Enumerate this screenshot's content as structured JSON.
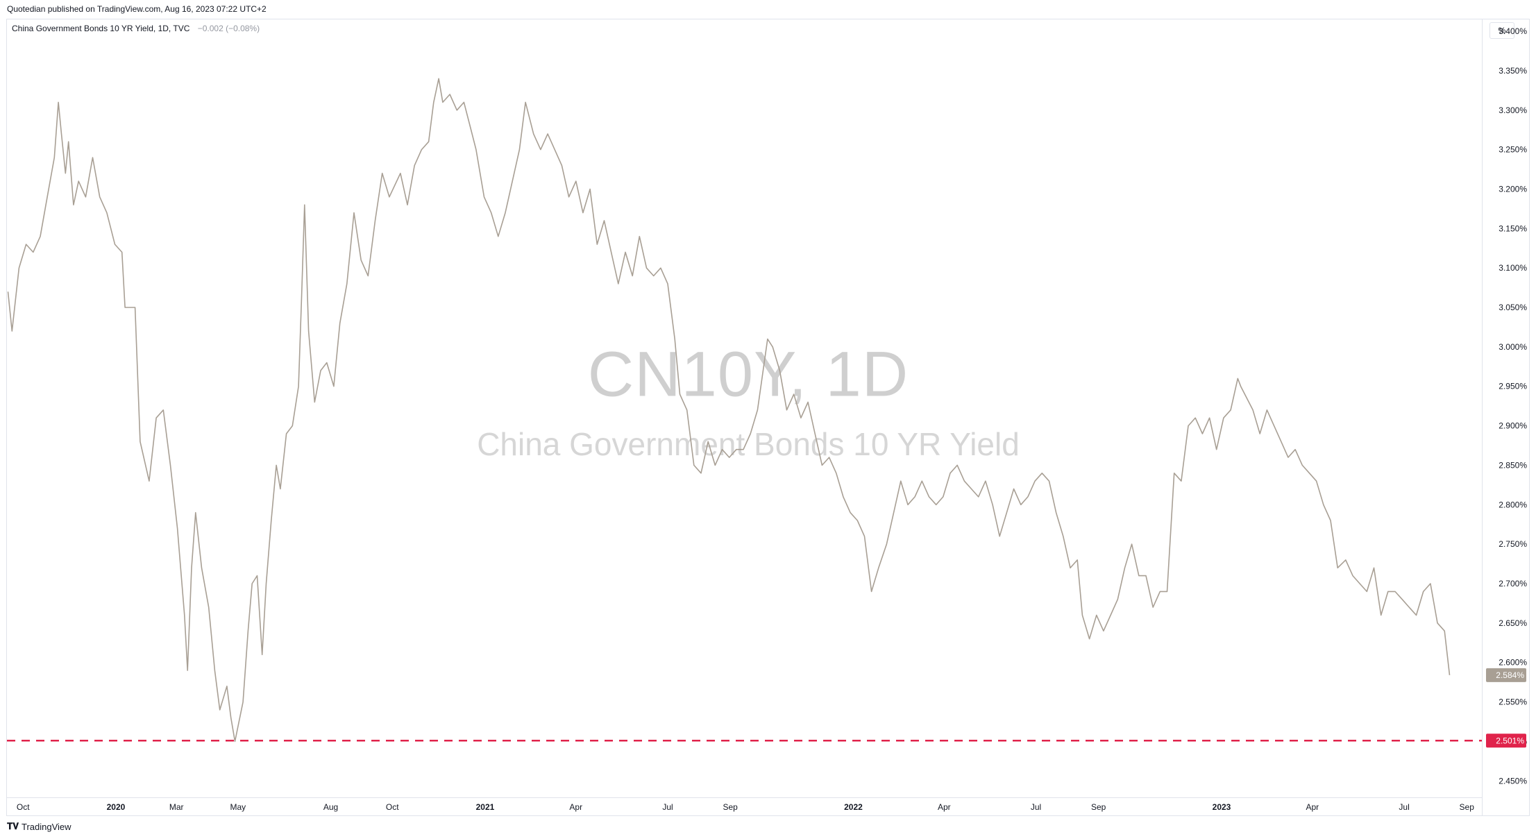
{
  "header": {
    "published": "Quotedian published on TradingView.com, Aug 16, 2023 07:22 UTC+2"
  },
  "legend": {
    "symbol": "China Government Bonds 10 YR Yield, 1D, TVC",
    "change": "−0.002 (−0.08%)"
  },
  "watermark": {
    "ticker": "CN10Y, 1D",
    "name": "China Government Bonds 10 YR Yield"
  },
  "axis": {
    "unit_label": "%"
  },
  "footer": {
    "brand": "TradingView"
  },
  "colors": {
    "line": "#a89f94",
    "support_line": "#e0234b",
    "last_price_badge": "#a89f94"
  },
  "chart_data": {
    "type": "line",
    "title": "",
    "xlabel": "",
    "ylabel": "",
    "ylim": [
      2.43,
      3.415
    ],
    "xlim_dates": [
      "2019-09-15",
      "2023-09-16"
    ],
    "y_ticks": [
      {
        "value": 2.45,
        "label": "2.450%"
      },
      {
        "value": 2.5,
        "label": "2.500%"
      },
      {
        "value": 2.55,
        "label": "2.550%"
      },
      {
        "value": 2.6,
        "label": "2.600%"
      },
      {
        "value": 2.65,
        "label": "2.650%"
      },
      {
        "value": 2.7,
        "label": "2.700%"
      },
      {
        "value": 2.75,
        "label": "2.750%"
      },
      {
        "value": 2.8,
        "label": "2.800%"
      },
      {
        "value": 2.85,
        "label": "2.850%"
      },
      {
        "value": 2.9,
        "label": "2.900%"
      },
      {
        "value": 2.95,
        "label": "2.950%"
      },
      {
        "value": 3.0,
        "label": "3.000%"
      },
      {
        "value": 3.05,
        "label": "3.050%"
      },
      {
        "value": 3.1,
        "label": "3.100%"
      },
      {
        "value": 3.15,
        "label": "3.150%"
      },
      {
        "value": 3.2,
        "label": "3.200%"
      },
      {
        "value": 3.25,
        "label": "3.250%"
      },
      {
        "value": 3.3,
        "label": "3.300%"
      },
      {
        "value": 3.35,
        "label": "3.350%"
      },
      {
        "value": 3.4,
        "label": "3.400%"
      }
    ],
    "x_ticks": [
      {
        "date": "2019-10-01",
        "label": "Oct",
        "bold": false
      },
      {
        "date": "2020-01-01",
        "label": "2020",
        "bold": true
      },
      {
        "date": "2020-03-01",
        "label": "Mar",
        "bold": false
      },
      {
        "date": "2020-05-01",
        "label": "May",
        "bold": false
      },
      {
        "date": "2020-08-01",
        "label": "Aug",
        "bold": false
      },
      {
        "date": "2020-10-01",
        "label": "Oct",
        "bold": false
      },
      {
        "date": "2021-01-01",
        "label": "2021",
        "bold": true
      },
      {
        "date": "2021-04-01",
        "label": "Apr",
        "bold": false
      },
      {
        "date": "2021-07-01",
        "label": "Jul",
        "bold": false
      },
      {
        "date": "2021-09-01",
        "label": "Sep",
        "bold": false
      },
      {
        "date": "2022-01-01",
        "label": "2022",
        "bold": true
      },
      {
        "date": "2022-04-01",
        "label": "Apr",
        "bold": false
      },
      {
        "date": "2022-07-01",
        "label": "Jul",
        "bold": false
      },
      {
        "date": "2022-09-01",
        "label": "Sep",
        "bold": false
      },
      {
        "date": "2023-01-01",
        "label": "2023",
        "bold": true
      },
      {
        "date": "2023-04-01",
        "label": "Apr",
        "bold": false
      },
      {
        "date": "2023-07-01",
        "label": "Jul",
        "bold": false
      },
      {
        "date": "2023-09-01",
        "label": "Sep",
        "bold": false
      }
    ],
    "series": [
      {
        "points": [
          [
            "2019-09-16",
            3.07
          ],
          [
            "2019-09-20",
            3.02
          ],
          [
            "2019-09-27",
            3.1
          ],
          [
            "2019-10-04",
            3.13
          ],
          [
            "2019-10-11",
            3.12
          ],
          [
            "2019-10-18",
            3.14
          ],
          [
            "2019-10-25",
            3.19
          ],
          [
            "2019-11-01",
            3.24
          ],
          [
            "2019-11-05",
            3.31
          ],
          [
            "2019-11-08",
            3.27
          ],
          [
            "2019-11-12",
            3.22
          ],
          [
            "2019-11-15",
            3.26
          ],
          [
            "2019-11-20",
            3.18
          ],
          [
            "2019-11-25",
            3.21
          ],
          [
            "2019-12-02",
            3.19
          ],
          [
            "2019-12-09",
            3.24
          ],
          [
            "2019-12-16",
            3.19
          ],
          [
            "2019-12-23",
            3.17
          ],
          [
            "2019-12-31",
            3.13
          ],
          [
            "2020-01-07",
            3.12
          ],
          [
            "2020-01-10",
            3.05
          ],
          [
            "2020-01-20",
            3.05
          ],
          [
            "2020-01-25",
            2.88
          ],
          [
            "2020-02-03",
            2.83
          ],
          [
            "2020-02-10",
            2.91
          ],
          [
            "2020-02-17",
            2.92
          ],
          [
            "2020-02-24",
            2.85
          ],
          [
            "2020-03-02",
            2.77
          ],
          [
            "2020-03-09",
            2.66
          ],
          [
            "2020-03-12",
            2.59
          ],
          [
            "2020-03-16",
            2.72
          ],
          [
            "2020-03-20",
            2.79
          ],
          [
            "2020-03-26",
            2.72
          ],
          [
            "2020-04-02",
            2.67
          ],
          [
            "2020-04-08",
            2.59
          ],
          [
            "2020-04-13",
            2.54
          ],
          [
            "2020-04-20",
            2.57
          ],
          [
            "2020-04-24",
            2.53
          ],
          [
            "2020-04-28",
            2.5
          ],
          [
            "2020-05-06",
            2.55
          ],
          [
            "2020-05-11",
            2.64
          ],
          [
            "2020-05-15",
            2.7
          ],
          [
            "2020-05-20",
            2.71
          ],
          [
            "2020-05-25",
            2.61
          ],
          [
            "2020-05-29",
            2.7
          ],
          [
            "2020-06-03",
            2.78
          ],
          [
            "2020-06-08",
            2.85
          ],
          [
            "2020-06-12",
            2.82
          ],
          [
            "2020-06-18",
            2.89
          ],
          [
            "2020-06-24",
            2.9
          ],
          [
            "2020-06-30",
            2.95
          ],
          [
            "2020-07-03",
            3.06
          ],
          [
            "2020-07-06",
            3.18
          ],
          [
            "2020-07-10",
            3.02
          ],
          [
            "2020-07-16",
            2.93
          ],
          [
            "2020-07-22",
            2.97
          ],
          [
            "2020-07-28",
            2.98
          ],
          [
            "2020-08-04",
            2.95
          ],
          [
            "2020-08-10",
            3.03
          ],
          [
            "2020-08-17",
            3.08
          ],
          [
            "2020-08-24",
            3.17
          ],
          [
            "2020-08-31",
            3.11
          ],
          [
            "2020-09-07",
            3.09
          ],
          [
            "2020-09-14",
            3.16
          ],
          [
            "2020-09-21",
            3.22
          ],
          [
            "2020-09-28",
            3.19
          ],
          [
            "2020-10-09",
            3.22
          ],
          [
            "2020-10-16",
            3.18
          ],
          [
            "2020-10-23",
            3.23
          ],
          [
            "2020-10-30",
            3.25
          ],
          [
            "2020-11-06",
            3.26
          ],
          [
            "2020-11-11",
            3.31
          ],
          [
            "2020-11-16",
            3.34
          ],
          [
            "2020-11-20",
            3.31
          ],
          [
            "2020-11-27",
            3.32
          ],
          [
            "2020-12-04",
            3.3
          ],
          [
            "2020-12-11",
            3.31
          ],
          [
            "2020-12-17",
            3.28
          ],
          [
            "2020-12-23",
            3.25
          ],
          [
            "2020-12-31",
            3.19
          ],
          [
            "2021-01-07",
            3.17
          ],
          [
            "2021-01-14",
            3.14
          ],
          [
            "2021-01-21",
            3.17
          ],
          [
            "2021-01-28",
            3.21
          ],
          [
            "2021-02-04",
            3.25
          ],
          [
            "2021-02-10",
            3.31
          ],
          [
            "2021-02-18",
            3.27
          ],
          [
            "2021-02-25",
            3.25
          ],
          [
            "2021-03-04",
            3.27
          ],
          [
            "2021-03-11",
            3.25
          ],
          [
            "2021-03-18",
            3.23
          ],
          [
            "2021-03-25",
            3.19
          ],
          [
            "2021-04-01",
            3.21
          ],
          [
            "2021-04-08",
            3.17
          ],
          [
            "2021-04-15",
            3.2
          ],
          [
            "2021-04-22",
            3.13
          ],
          [
            "2021-04-29",
            3.16
          ],
          [
            "2021-05-06",
            3.12
          ],
          [
            "2021-05-13",
            3.08
          ],
          [
            "2021-05-20",
            3.12
          ],
          [
            "2021-05-27",
            3.09
          ],
          [
            "2021-06-03",
            3.14
          ],
          [
            "2021-06-10",
            3.1
          ],
          [
            "2021-06-17",
            3.09
          ],
          [
            "2021-06-24",
            3.1
          ],
          [
            "2021-07-01",
            3.08
          ],
          [
            "2021-07-08",
            3.01
          ],
          [
            "2021-07-13",
            2.94
          ],
          [
            "2021-07-20",
            2.92
          ],
          [
            "2021-07-27",
            2.85
          ],
          [
            "2021-08-03",
            2.84
          ],
          [
            "2021-08-10",
            2.88
          ],
          [
            "2021-08-17",
            2.85
          ],
          [
            "2021-08-24",
            2.87
          ],
          [
            "2021-08-31",
            2.86
          ],
          [
            "2021-09-07",
            2.87
          ],
          [
            "2021-09-14",
            2.87
          ],
          [
            "2021-09-21",
            2.89
          ],
          [
            "2021-09-28",
            2.92
          ],
          [
            "2021-10-08",
            3.01
          ],
          [
            "2021-10-13",
            3.0
          ],
          [
            "2021-10-20",
            2.97
          ],
          [
            "2021-10-27",
            2.92
          ],
          [
            "2021-11-03",
            2.94
          ],
          [
            "2021-11-10",
            2.91
          ],
          [
            "2021-11-17",
            2.93
          ],
          [
            "2021-11-24",
            2.89
          ],
          [
            "2021-12-01",
            2.85
          ],
          [
            "2021-12-08",
            2.86
          ],
          [
            "2021-12-15",
            2.84
          ],
          [
            "2021-12-22",
            2.81
          ],
          [
            "2021-12-29",
            2.79
          ],
          [
            "2022-01-05",
            2.78
          ],
          [
            "2022-01-12",
            2.76
          ],
          [
            "2022-01-19",
            2.69
          ],
          [
            "2022-01-26",
            2.72
          ],
          [
            "2022-02-03",
            2.75
          ],
          [
            "2022-02-10",
            2.79
          ],
          [
            "2022-02-17",
            2.83
          ],
          [
            "2022-02-24",
            2.8
          ],
          [
            "2022-03-03",
            2.81
          ],
          [
            "2022-03-10",
            2.83
          ],
          [
            "2022-03-17",
            2.81
          ],
          [
            "2022-03-24",
            2.8
          ],
          [
            "2022-03-31",
            2.81
          ],
          [
            "2022-04-07",
            2.84
          ],
          [
            "2022-04-14",
            2.85
          ],
          [
            "2022-04-21",
            2.83
          ],
          [
            "2022-04-28",
            2.82
          ],
          [
            "2022-05-05",
            2.81
          ],
          [
            "2022-05-12",
            2.83
          ],
          [
            "2022-05-19",
            2.8
          ],
          [
            "2022-05-26",
            2.76
          ],
          [
            "2022-06-02",
            2.79
          ],
          [
            "2022-06-09",
            2.82
          ],
          [
            "2022-06-16",
            2.8
          ],
          [
            "2022-06-23",
            2.81
          ],
          [
            "2022-06-30",
            2.83
          ],
          [
            "2022-07-07",
            2.84
          ],
          [
            "2022-07-14",
            2.83
          ],
          [
            "2022-07-21",
            2.79
          ],
          [
            "2022-07-28",
            2.76
          ],
          [
            "2022-08-04",
            2.72
          ],
          [
            "2022-08-11",
            2.73
          ],
          [
            "2022-08-16",
            2.66
          ],
          [
            "2022-08-23",
            2.63
          ],
          [
            "2022-08-30",
            2.66
          ],
          [
            "2022-09-06",
            2.64
          ],
          [
            "2022-09-13",
            2.66
          ],
          [
            "2022-09-20",
            2.68
          ],
          [
            "2022-09-27",
            2.72
          ],
          [
            "2022-10-04",
            2.75
          ],
          [
            "2022-10-11",
            2.71
          ],
          [
            "2022-10-18",
            2.71
          ],
          [
            "2022-10-25",
            2.67
          ],
          [
            "2022-11-01",
            2.69
          ],
          [
            "2022-11-08",
            2.69
          ],
          [
            "2022-11-15",
            2.84
          ],
          [
            "2022-11-22",
            2.83
          ],
          [
            "2022-11-29",
            2.9
          ],
          [
            "2022-12-06",
            2.91
          ],
          [
            "2022-12-13",
            2.89
          ],
          [
            "2022-12-20",
            2.91
          ],
          [
            "2022-12-27",
            2.87
          ],
          [
            "2023-01-03",
            2.91
          ],
          [
            "2023-01-10",
            2.92
          ],
          [
            "2023-01-17",
            2.96
          ],
          [
            "2023-01-20",
            2.95
          ],
          [
            "2023-02-01",
            2.92
          ],
          [
            "2023-02-08",
            2.89
          ],
          [
            "2023-02-15",
            2.92
          ],
          [
            "2023-02-22",
            2.9
          ],
          [
            "2023-03-01",
            2.88
          ],
          [
            "2023-03-08",
            2.86
          ],
          [
            "2023-03-15",
            2.87
          ],
          [
            "2023-03-22",
            2.85
          ],
          [
            "2023-03-29",
            2.84
          ],
          [
            "2023-04-05",
            2.83
          ],
          [
            "2023-04-12",
            2.8
          ],
          [
            "2023-04-19",
            2.78
          ],
          [
            "2023-04-26",
            2.72
          ],
          [
            "2023-05-04",
            2.73
          ],
          [
            "2023-05-11",
            2.71
          ],
          [
            "2023-05-18",
            2.7
          ],
          [
            "2023-05-25",
            2.69
          ],
          [
            "2023-06-01",
            2.72
          ],
          [
            "2023-06-08",
            2.66
          ],
          [
            "2023-06-15",
            2.69
          ],
          [
            "2023-06-22",
            2.69
          ],
          [
            "2023-06-29",
            2.68
          ],
          [
            "2023-07-06",
            2.67
          ],
          [
            "2023-07-13",
            2.66
          ],
          [
            "2023-07-20",
            2.69
          ],
          [
            "2023-07-27",
            2.7
          ],
          [
            "2023-08-03",
            2.65
          ],
          [
            "2023-08-10",
            2.64
          ],
          [
            "2023-08-15",
            2.584
          ]
        ]
      }
    ],
    "last_value": {
      "value": 2.584,
      "label": "2.584%"
    },
    "horizontal_line": {
      "value": 2.501,
      "label": "2.501%",
      "style": "dashed"
    },
    "grid": false,
    "legend_position": "top-left"
  }
}
